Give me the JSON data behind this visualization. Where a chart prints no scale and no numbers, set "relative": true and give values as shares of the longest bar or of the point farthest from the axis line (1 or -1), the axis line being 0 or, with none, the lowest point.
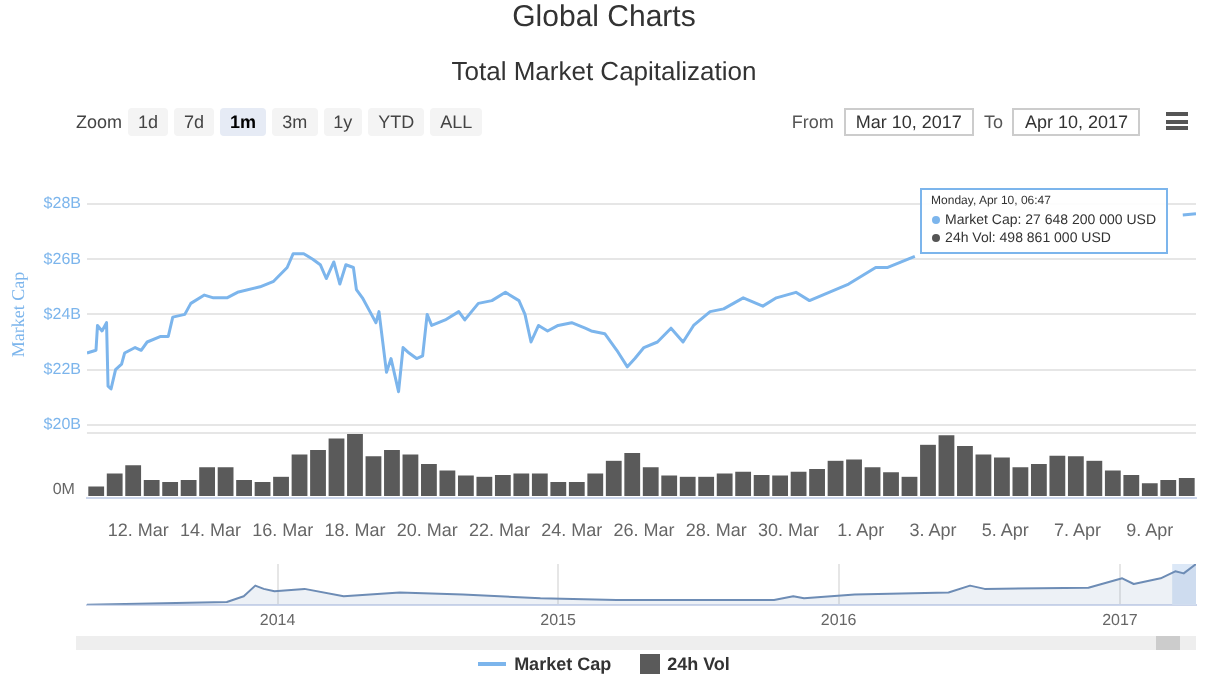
{
  "chart_data": [
    {
      "type": "line",
      "title": "Global Charts",
      "subtitle": "Total Market Capitalization",
      "ylabel": "Market Cap",
      "x": [
        "2017-03-10T14:00",
        "2017-03-10T20:00",
        "2017-03-10T21:00",
        "2017-03-11T00:00",
        "2017-03-11T03:00",
        "2017-03-11T04:00",
        "2017-03-11T06:00",
        "2017-03-11T09:00",
        "2017-03-11T13:00",
        "2017-03-11T15:00",
        "2017-03-11T22:00",
        "2017-03-12T02:00",
        "2017-03-12T06:00",
        "2017-03-12T15:00",
        "2017-03-12T20:00",
        "2017-03-12T23:00",
        "2017-03-13T07:00",
        "2017-03-13T11:00",
        "2017-03-13T20:00",
        "2017-03-14T02:00",
        "2017-03-14T11:00",
        "2017-03-14T18:00",
        "2017-03-15T09:00",
        "2017-03-15T18:00",
        "2017-03-16T03:00",
        "2017-03-16T07:00",
        "2017-03-16T14:00",
        "2017-03-16T20:00",
        "2017-03-17T01:00",
        "2017-03-17T05:00",
        "2017-03-17T10:00",
        "2017-03-17T14:00",
        "2017-03-17T18:00",
        "2017-03-17T23:00",
        "2017-03-18T01:00",
        "2017-03-18T05:00",
        "2017-03-18T10:00",
        "2017-03-18T14:00",
        "2017-03-18T16:00",
        "2017-03-18T21:00",
        "2017-03-19T00:00",
        "2017-03-19T05:00",
        "2017-03-19T08:00",
        "2017-03-19T12:00",
        "2017-03-19T17:00",
        "2017-03-19T21:00",
        "2017-03-20T00:00",
        "2017-03-20T03:00",
        "2017-03-20T12:00",
        "2017-03-20T21:00",
        "2017-03-21T01:00",
        "2017-03-21T10:00",
        "2017-03-21T19:00",
        "2017-03-22T04:00",
        "2017-03-22T13:00",
        "2017-03-22T17:00",
        "2017-03-22T21:00",
        "2017-03-23T02:00",
        "2017-03-23T08:00",
        "2017-03-23T15:00",
        "2017-03-24T00:00",
        "2017-03-24T09:00",
        "2017-03-24T13:00",
        "2017-03-24T22:00",
        "2017-03-25T06:00",
        "2017-03-25T13:00",
        "2017-03-25T18:00",
        "2017-03-26T00:00",
        "2017-03-26T09:00",
        "2017-03-26T18:00",
        "2017-03-27T02:00",
        "2017-03-27T09:00",
        "2017-03-27T20:00",
        "2017-03-28T05:00",
        "2017-03-28T18:00",
        "2017-03-29T07:00",
        "2017-03-29T16:00",
        "2017-03-30T05:00",
        "2017-03-30T14:00",
        "2017-03-31T03:00",
        "2017-03-31T16:00",
        "2017-04-01T01:00",
        "2017-04-01T10:00",
        "2017-04-01T18:00",
        "2017-04-02T03:00",
        "2017-04-02T12:00",
        "2017-04-06T00:00",
        "2017-04-09T22:00",
        "2017-04-10T06:47"
      ],
      "series": [
        {
          "name": "Market Cap",
          "color": "#7cb5ec",
          "values": [
            22.6,
            22.7,
            23.6,
            23.4,
            23.7,
            21.4,
            21.3,
            22.0,
            22.2,
            22.6,
            22.8,
            22.7,
            23.0,
            23.2,
            23.2,
            23.9,
            24.0,
            24.4,
            24.7,
            24.6,
            24.6,
            24.8,
            25.0,
            25.2,
            25.7,
            26.2,
            26.2,
            26.0,
            25.8,
            25.3,
            25.9,
            25.1,
            25.8,
            25.7,
            24.9,
            24.6,
            24.1,
            23.7,
            24.1,
            21.9,
            22.4,
            21.2,
            22.8,
            22.6,
            22.4,
            22.5,
            24.0,
            23.6,
            23.8,
            24.1,
            23.8,
            24.4,
            24.5,
            24.8,
            24.5,
            24.0,
            23.0,
            23.6,
            23.4,
            23.6,
            23.7,
            23.5,
            23.4,
            23.3,
            22.7,
            22.1,
            22.4,
            22.8,
            23.0,
            23.5,
            23.0,
            23.6,
            24.1,
            24.2,
            24.6,
            24.3,
            24.6,
            24.8,
            24.5,
            24.8,
            25.1,
            25.4,
            25.7,
            25.7,
            25.9,
            26.1,
            null,
            27.6,
            27.6482
          ]
        }
      ],
      "xlim": [
        "2017-03-10T14:00",
        "2017-04-10T06:47"
      ],
      "xticks": [
        {
          "value": "2017-03-12",
          "label": "12. Mar"
        },
        {
          "value": "2017-03-14",
          "label": "14. Mar"
        },
        {
          "value": "2017-03-16",
          "label": "16. Mar"
        },
        {
          "value": "2017-03-18",
          "label": "18. Mar"
        },
        {
          "value": "2017-03-20",
          "label": "20. Mar"
        },
        {
          "value": "2017-03-22",
          "label": "22. Mar"
        },
        {
          "value": "2017-03-24",
          "label": "24. Mar"
        },
        {
          "value": "2017-03-26",
          "label": "26. Mar"
        },
        {
          "value": "2017-03-28",
          "label": "28. Mar"
        },
        {
          "value": "2017-03-30",
          "label": "30. Mar"
        },
        {
          "value": "2017-04-01",
          "label": "1. Apr"
        },
        {
          "value": "2017-04-03",
          "label": "3. Apr"
        },
        {
          "value": "2017-04-05",
          "label": "5. Apr"
        },
        {
          "value": "2017-04-07",
          "label": "7. Apr"
        },
        {
          "value": "2017-04-09",
          "label": "9. Apr"
        }
      ],
      "ylim": [
        20,
        28
      ],
      "yticks": [
        {
          "value": 20,
          "label": "$20B"
        },
        {
          "value": 22,
          "label": "$22B"
        },
        {
          "value": 24,
          "label": "$24B"
        },
        {
          "value": 26,
          "label": "$26B"
        },
        {
          "value": 28,
          "label": "$28B"
        }
      ],
      "grid": "y",
      "legend": "bottom",
      "marker": "none",
      "line_style": "solid",
      "annotations": [
        "Monday, Apr 10, 06:47",
        "Market Cap: 27 648 200 000 USD",
        "24h Vol: 498 861 000 USD",
        "Zoom",
        "1d",
        "7d",
        "1m",
        "3m",
        "1y",
        "YTD",
        "ALL",
        "From",
        "Mar 10, 2017",
        "To",
        "Apr 10, 2017"
      ]
    },
    {
      "type": "bar",
      "relative": true,
      "legend": "bottom",
      "categories": [
        null,
        null,
        null,
        null,
        null,
        null,
        null,
        null,
        null,
        null,
        null,
        null,
        null,
        null,
        null,
        null,
        null,
        null,
        null,
        null,
        null,
        null,
        null,
        null,
        null,
        null,
        null,
        null,
        null,
        null,
        null,
        null,
        null,
        null,
        null,
        null,
        null,
        null,
        null,
        null,
        null,
        null,
        null,
        null,
        null,
        null,
        null,
        null,
        null,
        null,
        null,
        null,
        null,
        null,
        null,
        null,
        null,
        null,
        null,
        null
      ],
      "series": [
        {
          "name": "24h Vol",
          "color": "#5a5a5a",
          "values": [
            0.15,
            0.35,
            0.48,
            0.25,
            0.22,
            0.25,
            0.45,
            0.45,
            0.25,
            0.22,
            0.3,
            0.65,
            0.72,
            0.9,
            1.0,
            0.62,
            0.72,
            0.65,
            0.5,
            0.4,
            0.32,
            0.3,
            0.33,
            0.35,
            0.35,
            0.22,
            0.22,
            0.35,
            0.55,
            0.67,
            0.45,
            0.32,
            0.3,
            0.3,
            0.35,
            0.38,
            0.33,
            0.32,
            0.38,
            0.42,
            0.55,
            0.57,
            0.45,
            0.37,
            0.3,
            0.8,
            0.95,
            0.78,
            0.65,
            0.6,
            0.45,
            0.5,
            0.63,
            0.62,
            0.55,
            0.4,
            0.33,
            0.2,
            0.25,
            0.28
          ]
        }
      ],
      "annotations": [
        "0M"
      ]
    },
    {
      "type": "area",
      "relative": true,
      "grid": "x",
      "x": [
        "2013-04-28",
        "2013-10-27",
        "2013-11-18",
        "2013-12-03",
        "2013-12-14",
        "2013-12-28",
        "2014-02-05",
        "2014-03-28",
        "2014-06-09",
        "2014-08-30",
        "2014-12-09",
        "2015-03-18",
        "2015-10-09",
        "2015-11-03",
        "2015-11-17",
        "2016-01-22",
        "2016-05-23",
        "2016-06-20",
        "2016-07-09",
        "2016-11-21",
        "2017-01-04",
        "2017-01-19",
        "2017-02-23",
        "2017-03-14",
        "2017-03-25",
        "2017-04-10"
      ],
      "series": [
        {
          "color": "#6d8cb5",
          "values": [
            0.0,
            0.07,
            0.21,
            0.47,
            0.39,
            0.33,
            0.39,
            0.21,
            0.3,
            0.25,
            0.16,
            0.12,
            0.12,
            0.21,
            0.16,
            0.25,
            0.3,
            0.47,
            0.39,
            0.42,
            0.65,
            0.51,
            0.65,
            0.82,
            0.77,
            1.0
          ]
        }
      ],
      "xlim": [
        "2013-04-28",
        "2017-04-10"
      ],
      "xticks": [
        {
          "value": "2014",
          "label": "2014"
        },
        {
          "value": "2015",
          "label": "2015"
        },
        {
          "value": "2016",
          "label": "2016"
        },
        {
          "value": "2017",
          "label": "2017"
        }
      ],
      "bands": [
        {
          "axis": "x",
          "from": "2017-03-10",
          "to": "2017-04-10",
          "color": "#dce8f7"
        }
      ]
    }
  ]
}
